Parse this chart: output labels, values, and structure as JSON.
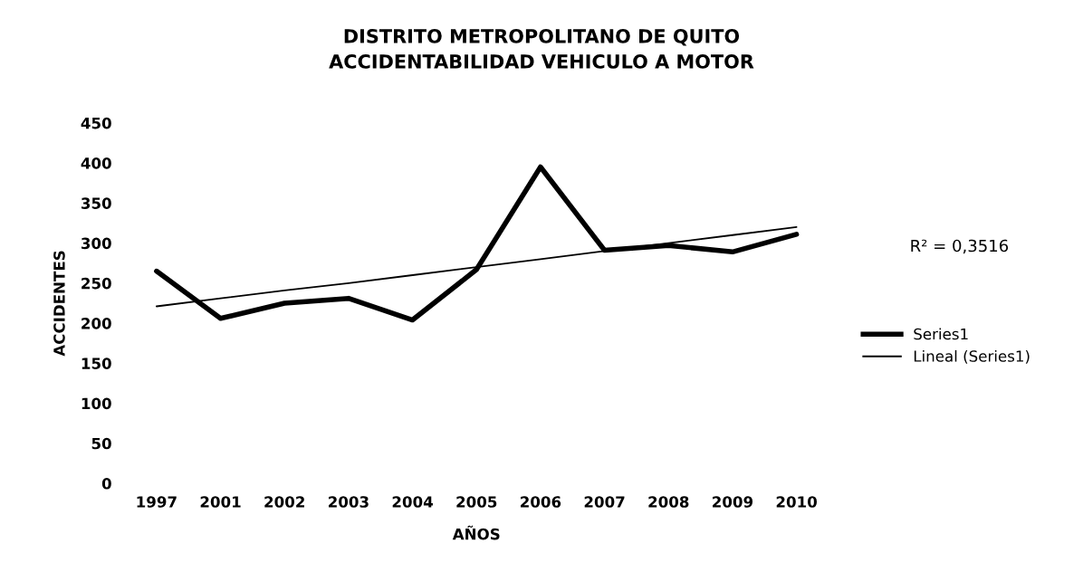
{
  "chart_data": {
    "type": "line",
    "title": "DISTRITO METROPOLITANO DE QUITO\nACCIDENTABILIDAD VEHICULO A MOTOR",
    "xlabel": "AÑOS",
    "ylabel": "ACCIDENTES",
    "categories": [
      "1997",
      "2001",
      "2002",
      "2003",
      "2004",
      "2005",
      "2006",
      "2007",
      "2008",
      "2009",
      "2010"
    ],
    "series": [
      {
        "name": "Series1",
        "color": "#000000",
        "values": [
          265,
          206,
          225,
          231,
          204,
          267,
          395,
          291,
          297,
          289,
          311
        ]
      },
      {
        "name": "Lineal (Series1)",
        "color": "#000000",
        "values": [
          221,
          231,
          241,
          250,
          260,
          270,
          280,
          290,
          300,
          310,
          320
        ]
      }
    ],
    "ylim": [
      0,
      450
    ],
    "yticks": [
      0,
      50,
      100,
      150,
      200,
      250,
      300,
      350,
      400,
      450
    ],
    "annotations": [
      "R² = 0,3516"
    ],
    "legend": "right",
    "grid": false,
    "marker": "none"
  }
}
